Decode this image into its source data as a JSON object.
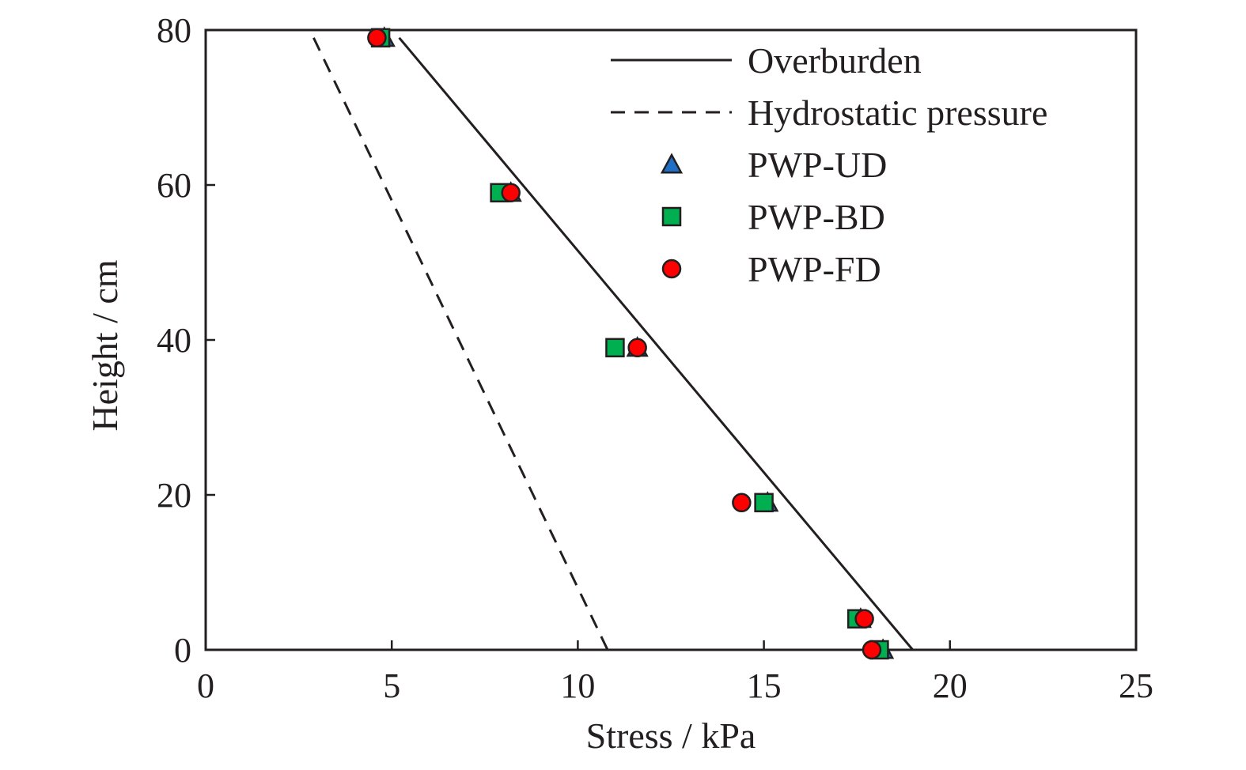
{
  "chart_data": {
    "type": "scatter",
    "title": "",
    "xlabel": "Stress / kPa",
    "ylabel": "Height / cm",
    "xlim": [
      0,
      25
    ],
    "ylim": [
      0,
      80
    ],
    "xticks": [
      "0",
      "5",
      "10",
      "15",
      "20",
      "25"
    ],
    "yticks": [
      "0",
      "20",
      "40",
      "60",
      "80"
    ],
    "grid": false,
    "legend_position": "top-right",
    "lines": [
      {
        "name": "Overburden",
        "style": "solid",
        "color": "#231f20",
        "x": [
          5.2,
          19.0
        ],
        "y": [
          79,
          0
        ]
      },
      {
        "name": "Hydrostatic pressure",
        "style": "dashed",
        "color": "#231f20",
        "x": [
          2.9,
          10.8
        ],
        "y": [
          79,
          0
        ]
      }
    ],
    "series": [
      {
        "name": "PWP-UD",
        "marker": "triangle",
        "color": "#1f6fc5",
        "x": [
          4.8,
          8.2,
          11.6,
          15.1,
          17.6,
          18.2
        ],
        "y": [
          79,
          59,
          39,
          19,
          4,
          0
        ]
      },
      {
        "name": "PWP-BD",
        "marker": "square",
        "color": "#00b050",
        "x": [
          4.7,
          7.9,
          11.0,
          15.0,
          17.5,
          18.1
        ],
        "y": [
          79,
          59,
          39,
          19,
          4,
          0
        ]
      },
      {
        "name": "PWP-FD",
        "marker": "circle",
        "color": "#ff0000",
        "x": [
          4.6,
          8.2,
          11.6,
          14.4,
          17.7,
          17.9
        ],
        "y": [
          79,
          59,
          39,
          19,
          4,
          0
        ]
      }
    ]
  }
}
